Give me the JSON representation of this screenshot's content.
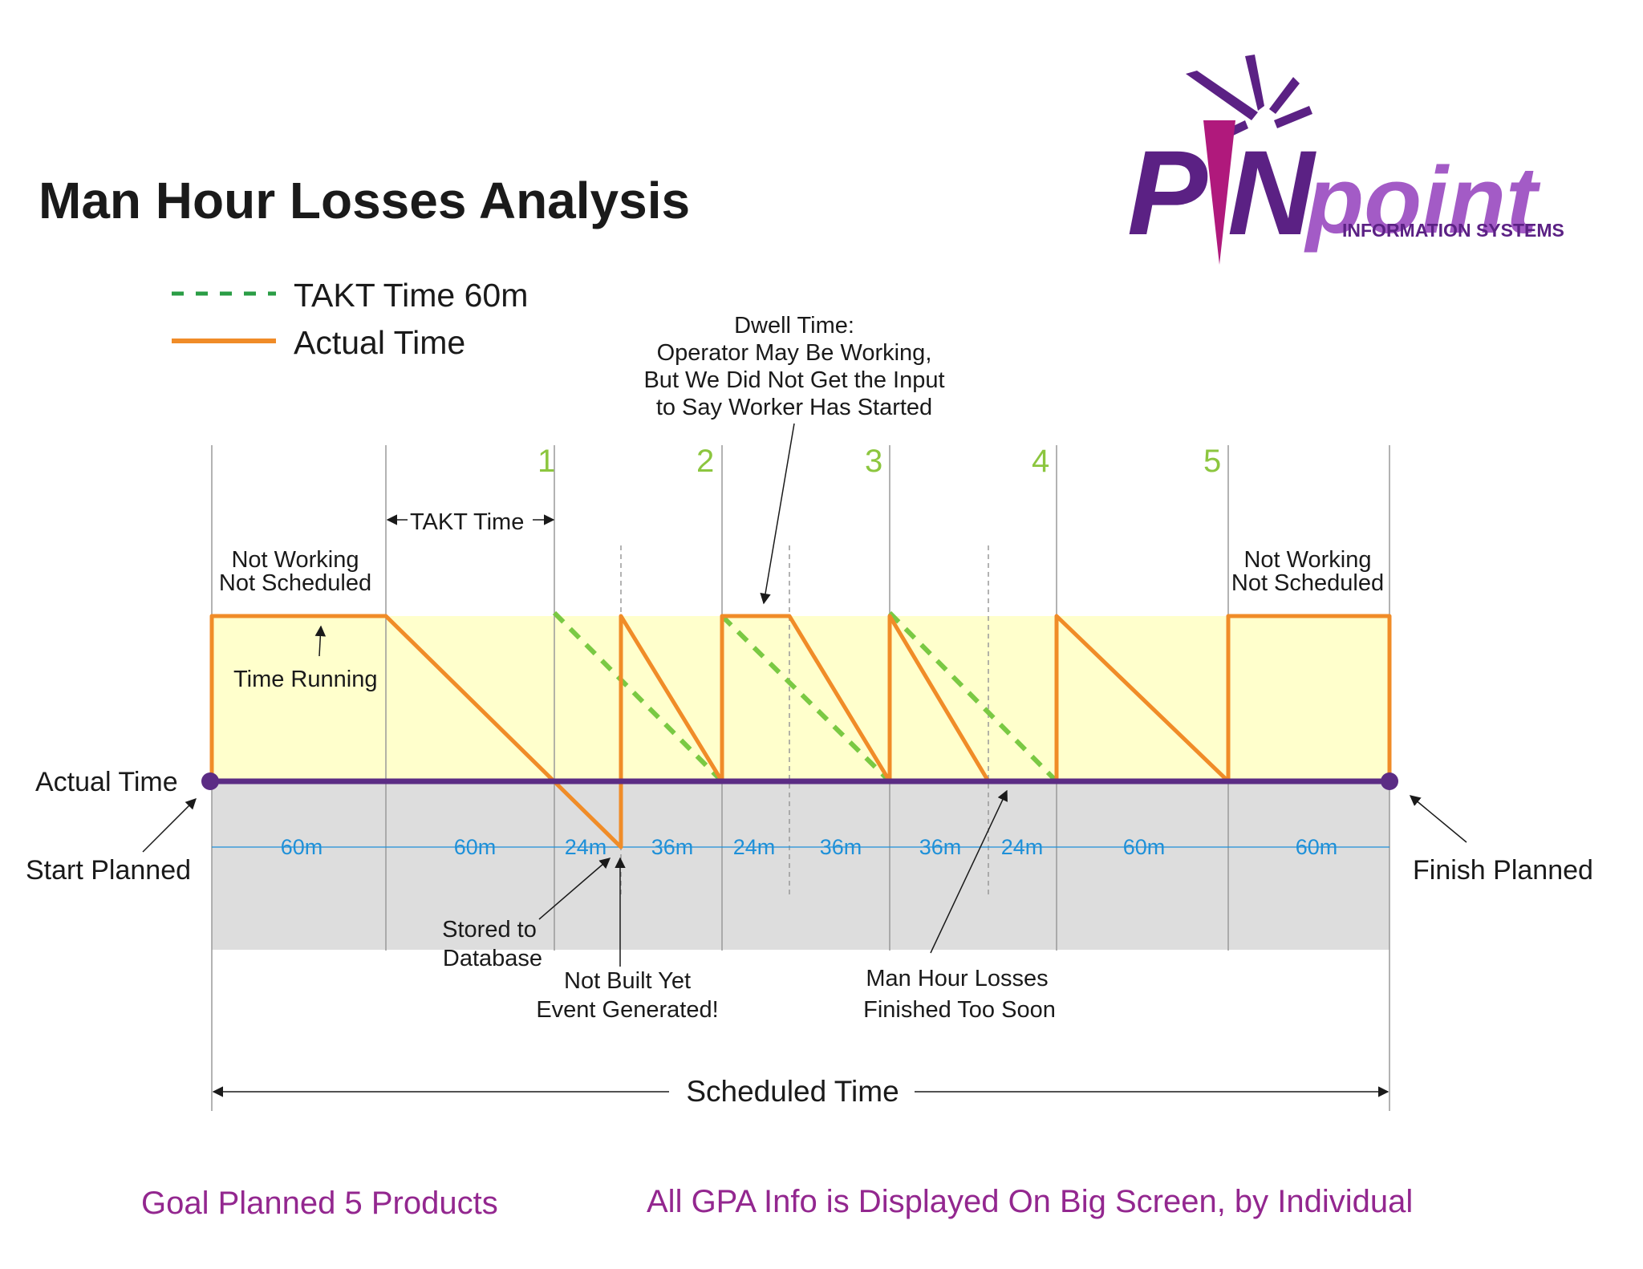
{
  "title": "Man Hour Losses Analysis",
  "logo": {
    "brand": "PINpoint",
    "tagline": "INFORMATION SYSTEMS",
    "colors": {
      "purple": "#5b2184",
      "light_purple": "#a35bc6",
      "magenta": "#b0197c"
    }
  },
  "legend": {
    "takt": "TAKT Time 60m",
    "actual": "Actual Time"
  },
  "colors": {
    "takt_line": "#7ac943",
    "actual_line": "#f08c28",
    "baseline": "#5b2c84",
    "working_zone": "#ffffcc",
    "loss_zone": "#dddddd",
    "duration_text": "#1e90d8",
    "number_text": "#8cc63f",
    "footer_text": "#93278f"
  },
  "cycle_numbers": [
    "1",
    "2",
    "3",
    "4",
    "5"
  ],
  "durations": [
    "60m",
    "60m",
    "24m",
    "36m",
    "24m",
    "36m",
    "36m",
    "24m",
    "60m",
    "60m"
  ],
  "annotations": {
    "takt_time": "TAKT Time",
    "not_working_left": [
      "Not Working",
      "Not Scheduled"
    ],
    "not_working_right": [
      "Not Working",
      "Not Scheduled"
    ],
    "time_running": "Time Running",
    "dwell": [
      "Dwell Time:",
      "Operator May Be Working,",
      "But We Did Not Get the Input",
      "to Say Worker Has Started"
    ],
    "actual_time": "Actual Time",
    "start_planned": "Start Planned",
    "finish_planned": "Finish Planned",
    "stored": [
      "Stored to",
      "Database"
    ],
    "not_built": [
      "Not Built Yet",
      "Event Generated!"
    ],
    "man_hour_losses": [
      "Man Hour Losses",
      "Finished Too Soon"
    ],
    "scheduled_time": "Scheduled Time"
  },
  "footer": {
    "goal": "Goal Planned 5 Products",
    "gpa": "All GPA Info is Displayed On Big Screen, by Individual"
  }
}
